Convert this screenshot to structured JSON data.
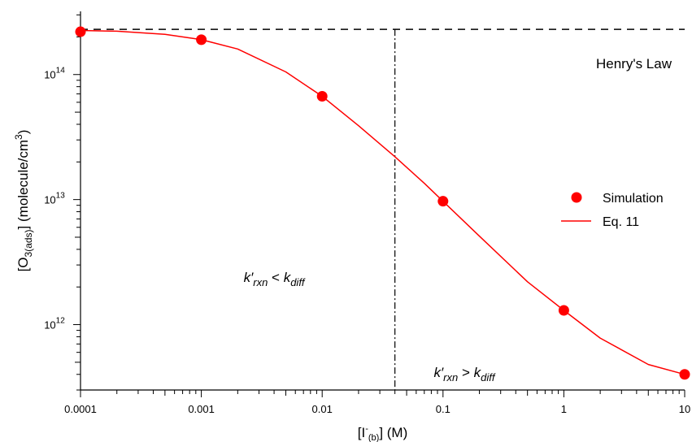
{
  "chart_data": {
    "type": "scatter",
    "xscale": "log",
    "yscale": "log",
    "xlim": [
      0.0001,
      10
    ],
    "ylim": [
      300000000000.0,
      320000000000000.0
    ],
    "x_ticks": [
      {
        "value": 0.0001,
        "label": "0.0001"
      },
      {
        "value": 0.001,
        "label": "0.001"
      },
      {
        "value": 0.01,
        "label": "0.01"
      },
      {
        "value": 0.1,
        "label": "0.1"
      },
      {
        "value": 1,
        "label": "1"
      },
      {
        "value": 10,
        "label": "10"
      }
    ],
    "y_ticks": [
      {
        "value": 1000000000000.0,
        "base": "10",
        "exp": "12"
      },
      {
        "value": 10000000000000.0,
        "base": "10",
        "exp": "13"
      },
      {
        "value": 100000000000000.0,
        "base": "10",
        "exp": "14"
      }
    ],
    "xlabel": {
      "main": "[I",
      "sup": "-",
      "sub": "(b)",
      "end": "] (M)"
    },
    "ylabel": {
      "main": "[O",
      "sub": "3(ads)",
      "mid": "] (molecule/cm",
      "sup": "3",
      "end": ")"
    },
    "series": [
      {
        "name": "Simulation",
        "kind": "points",
        "color": "#ff0000",
        "x": [
          0.0001,
          0.001,
          0.01,
          0.1,
          1,
          10
        ],
        "y": [
          220000000000000.0,
          190000000000000.0,
          67000000000000.0,
          9700000000000.0,
          1300000000000.0,
          400000000000.0
        ]
      },
      {
        "name": "Eq. 11",
        "kind": "line",
        "color": "#ff0000",
        "x": [
          0.0001,
          0.0002,
          0.0005,
          0.001,
          0.002,
          0.005,
          0.01,
          0.02,
          0.04,
          0.07,
          0.1,
          0.2,
          0.5,
          1,
          2,
          5,
          10
        ],
        "y": [
          225000000000000.0,
          222000000000000.0,
          210000000000000.0,
          190000000000000.0,
          160000000000000.0,
          105000000000000.0,
          67000000000000.0,
          39000000000000.0,
          22000000000000.0,
          13500000000000.0,
          9700000000000.0,
          5100000000000.0,
          2200000000000.0,
          1300000000000.0,
          780000000000.0,
          480000000000.0,
          400000000000.0
        ]
      }
    ],
    "reference_lines": {
      "henry_y": 230000000000000.0,
      "henry_label": "Henry's Law",
      "divider_x": 0.04
    },
    "annotations": {
      "left": {
        "k": "k′",
        "ksub": "rxn",
        "op": " < ",
        "k2": "k",
        "k2sub": "diff",
        "x": 0.004,
        "y": 2200000000000.0
      },
      "right": {
        "k": "k′",
        "ksub": "rxn",
        "op": " > ",
        "k2": "k",
        "k2sub": "diff",
        "x": 0.15,
        "y": 380000000000.0
      }
    },
    "legend": {
      "placement": "right",
      "items": [
        {
          "label": "Simulation",
          "marker": "circle"
        },
        {
          "label": "Eq. 11",
          "marker": "line"
        }
      ]
    },
    "grid": false
  }
}
